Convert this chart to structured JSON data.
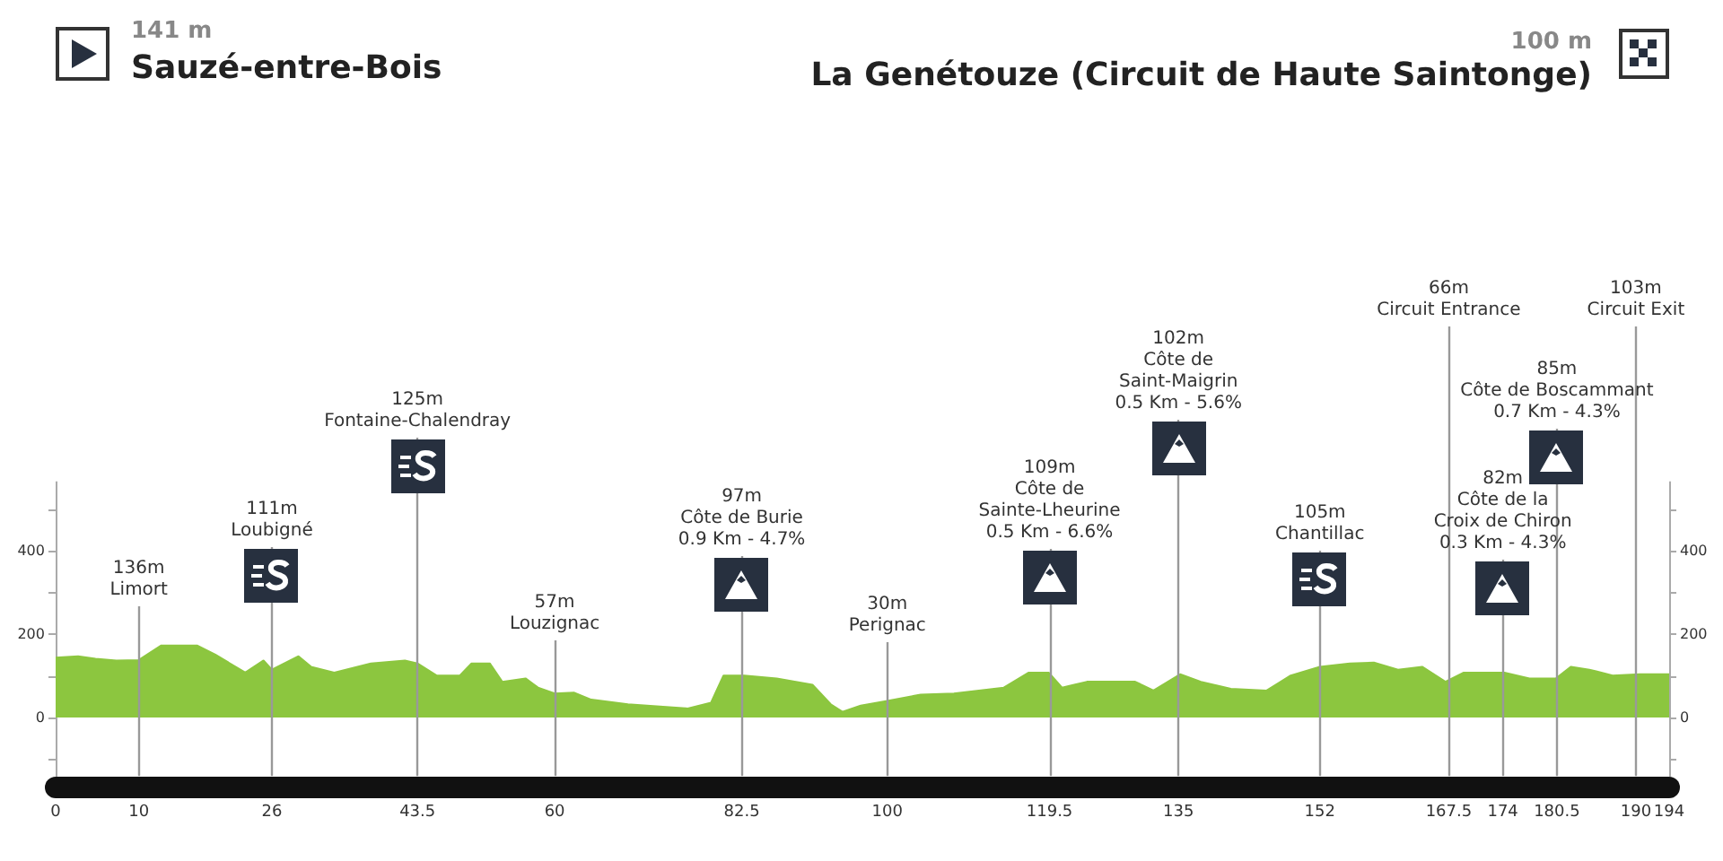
{
  "chart_data": {
    "type": "area",
    "title": "Sauzé-entre-Bois",
    "subtitle": "La Genétouze (Circuit de Haute Saintonge)",
    "color": "#8cc63f",
    "x": [
      0,
      2.7,
      4.8,
      7.3,
      10,
      12.7,
      17,
      19.2,
      22.8,
      25,
      26,
      29.2,
      30.7,
      33.5,
      37.9,
      42,
      43.5,
      45.8,
      48.6,
      50,
      52.2,
      53.7,
      56.5,
      58,
      60,
      62.3,
      64.4,
      68.8,
      76,
      78.8,
      80.3,
      82.8,
      86.7,
      91,
      93.2,
      94.6,
      96.8,
      100,
      104,
      108,
      114,
      117,
      119.4,
      121,
      124,
      129.8,
      132,
      135.2,
      137.7,
      141.3,
      145.6,
      148.5,
      152,
      155.6,
      158.5,
      161.4,
      164.3,
      167.1,
      169.3,
      174.2,
      177.2,
      180.4,
      182.2,
      184.4,
      187.2,
      190.5,
      194
    ],
    "values": [
      144,
      147,
      141,
      137,
      138,
      173,
      173,
      151,
      108,
      137,
      115,
      147,
      122,
      108,
      130,
      137,
      130,
      101,
      101,
      130,
      130,
      86,
      94,
      72,
      58,
      60,
      43,
      32,
      22,
      36,
      101,
      101,
      94,
      79,
      32,
      14,
      29,
      40,
      55,
      58,
      72,
      108,
      108,
      72,
      86,
      86,
      65,
      104,
      86,
      69,
      65,
      101,
      122,
      130,
      132,
      115,
      122,
      86,
      108,
      108,
      94,
      94,
      122,
      115,
      101,
      104,
      104
    ],
    "xlim": [
      0,
      194
    ],
    "xticks": [
      0,
      10,
      26,
      43.5,
      60,
      82.5,
      100,
      119.5,
      135,
      152,
      167.5,
      174,
      180.5,
      190,
      194
    ],
    "ylim": [
      -140,
      565
    ],
    "yticks": [
      {
        "value": -100,
        "label": null
      },
      0,
      {
        "value": 100,
        "label": null
      },
      200,
      {
        "value": 300,
        "label": null
      },
      400,
      {
        "value": 500,
        "label": null
      }
    ],
    "y2lim": [
      -140,
      565
    ],
    "y2ticks": [
      {
        "value": -100,
        "label": null
      },
      0,
      {
        "value": 100,
        "label": null
      },
      200,
      {
        "value": 300,
        "label": null
      },
      400,
      {
        "value": 500,
        "label": null
      }
    ],
    "annotations": [
      "141 m",
      "100 m"
    ],
    "ref_lines": [
      {
        "axis": "x",
        "value": 10,
        "label": "136m\nLimort",
        "color": "#999999"
      },
      {
        "axis": "x",
        "value": 26,
        "label": "111m\nLoubigné",
        "color": "#999999"
      },
      {
        "axis": "x",
        "value": 43.5,
        "label": "125m\nFontaine-Chalendray",
        "color": "#999999"
      },
      {
        "axis": "x",
        "value": 60,
        "label": "57m\nLouzignac",
        "color": "#999999"
      },
      {
        "axis": "x",
        "value": 82.5,
        "label": "97m\nCôte de Burie\n0.9 Km - 4.7%",
        "color": "#999999"
      },
      {
        "axis": "x",
        "value": 100,
        "label": "30m\nPerignac",
        "color": "#999999"
      },
      {
        "axis": "x",
        "value": 119.5,
        "label": "109m\nCôte de\nSainte-Lheurine\n0.5 Km - 6.6%",
        "color": "#999999"
      },
      {
        "axis": "x",
        "value": 135,
        "label": "102m\nCôte de\nSaint-Maigrin\n0.5 Km - 5.6%",
        "color": "#999999"
      },
      {
        "axis": "x",
        "value": 152,
        "label": "105m\nChantillac",
        "color": "#999999"
      },
      {
        "axis": "x",
        "value": 167.5,
        "label": "66m\nCircuit Entrance",
        "color": "#999999"
      },
      {
        "axis": "x",
        "value": 174,
        "label": "82m\nCôte de la\nCroix de Chiron\n0.3 Km - 4.3%",
        "color": "#999999"
      },
      {
        "axis": "x",
        "value": 180.5,
        "label": "85m\nCôte de Boscammant\n0.7 Km - 4.3%",
        "color": "#999999"
      },
      {
        "axis": "x",
        "value": 190,
        "label": "103m\nCircuit Exit",
        "color": "#999999"
      }
    ]
  }
}
